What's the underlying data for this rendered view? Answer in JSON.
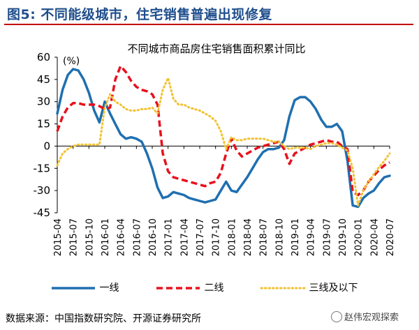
{
  "figure": {
    "title": "图5:  不同能级城市，住宅销售普遍出现修复",
    "source": "数据来源：中国指数研究院、开源证券研究所",
    "watermark": "赵伟宏观探索"
  },
  "colors": {
    "title": "#1f4e8c",
    "rule": "#c00000"
  },
  "chart_data": {
    "type": "line",
    "title": "不同城市商品房住宅销售面积累计同比",
    "ylabel": "(%)",
    "xlabel": "",
    "ylim": [
      -45,
      60
    ],
    "yticks": [
      -45,
      -30,
      -15,
      0,
      15,
      30,
      45,
      60
    ],
    "grid": false,
    "legend_position": "bottom",
    "x": [
      "2015-04",
      "2015-05",
      "2015-06",
      "2015-07",
      "2015-08",
      "2015-09",
      "2015-10",
      "2015-11",
      "2015-12",
      "2016-01",
      "2016-02",
      "2016-03",
      "2016-04",
      "2016-05",
      "2016-06",
      "2016-07",
      "2016-08",
      "2016-09",
      "2016-10",
      "2016-11",
      "2016-12",
      "2017-01",
      "2017-02",
      "2017-03",
      "2017-04",
      "2017-05",
      "2017-06",
      "2017-07",
      "2017-08",
      "2017-09",
      "2017-10",
      "2017-11",
      "2017-12",
      "2018-01",
      "2018-02",
      "2018-03",
      "2018-04",
      "2018-05",
      "2018-06",
      "2018-07",
      "2018-08",
      "2018-09",
      "2018-10",
      "2018-11",
      "2018-12",
      "2019-01",
      "2019-02",
      "2019-03",
      "2019-04",
      "2019-05",
      "2019-06",
      "2019-07",
      "2019-08",
      "2019-09",
      "2019-10",
      "2019-11",
      "2019-12",
      "2020-01",
      "2020-02",
      "2020-03",
      "2020-04",
      "2020-05",
      "2020-06",
      "2020-07"
    ],
    "xtick_labels": [
      "2015-04",
      "2015-07",
      "2015-10",
      "2016-01",
      "2016-04",
      "2016-07",
      "2016-10",
      "2017-01",
      "2017-04",
      "2017-07",
      "2017-10",
      "2018-01",
      "2018-04",
      "2018-07",
      "2018-10",
      "2019-01",
      "2019-04",
      "2019-07",
      "2019-10",
      "2020-01",
      "2020-04",
      "2020-07"
    ],
    "series": [
      {
        "name": "一线",
        "color": "#1f6fb0",
        "dash": "solid",
        "values": [
          22,
          38,
          48,
          52,
          51,
          45,
          36,
          24,
          16,
          30,
          22,
          15,
          8,
          5,
          6,
          5,
          3,
          -5,
          -15,
          -28,
          -35,
          -34,
          -31,
          -32,
          -33,
          -35,
          -36,
          -37,
          -38,
          -37,
          -36,
          -30,
          -24,
          -30,
          -31,
          -26,
          -21,
          -15,
          -9,
          -4,
          -2,
          -2,
          -1,
          4,
          20,
          31,
          33,
          33,
          30,
          25,
          18,
          13,
          13,
          15,
          10,
          -10,
          -40,
          -41,
          -35,
          -32,
          -30,
          -25,
          -21,
          -20
        ]
      },
      {
        "name": "二线",
        "color": "#e8101d",
        "dash": "dashed",
        "values": [
          10,
          20,
          26,
          29,
          29,
          28,
          28,
          28,
          27,
          25,
          26,
          45,
          54,
          50,
          44,
          40,
          38,
          37,
          35,
          28,
          -5,
          -17,
          -21,
          -22,
          -23,
          -24,
          -25,
          -26,
          -27,
          -25,
          -24,
          -18,
          -5,
          5,
          -3,
          -7,
          -5,
          -3,
          -1,
          0,
          1,
          2,
          3,
          -2,
          -12,
          -5,
          -3,
          -1,
          1,
          2,
          3,
          4,
          3,
          3,
          0,
          -2,
          -31,
          -33,
          -30,
          -24,
          -20,
          -16,
          -13,
          -11
        ]
      },
      {
        "name": "三线及以下",
        "color": "#f2c230",
        "dash": "dotted",
        "values": [
          -13,
          -5,
          -2,
          0,
          1,
          1,
          1,
          1,
          1,
          26,
          35,
          30,
          28,
          25,
          24,
          24,
          25,
          25,
          26,
          22,
          38,
          46,
          32,
          28,
          28,
          26,
          25,
          24,
          22,
          20,
          17,
          10,
          -2,
          6,
          4,
          4,
          5,
          5,
          5,
          5,
          4,
          3,
          3,
          0,
          -2,
          -1,
          -1,
          -1,
          -2,
          0,
          1,
          2,
          2,
          1,
          -1,
          -3,
          -15,
          -40,
          -30,
          -24,
          -19,
          -14,
          -10,
          -5
        ]
      }
    ]
  }
}
